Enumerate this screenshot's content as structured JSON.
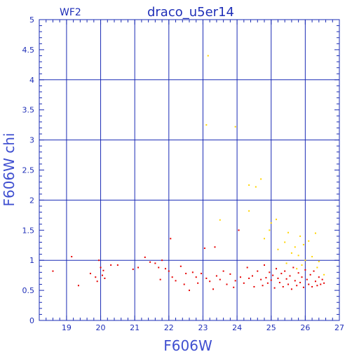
{
  "chart_data": {
    "type": "scatter",
    "title": "draco_u5er14",
    "subtitle": "WF2",
    "xlabel": "F606W",
    "ylabel": "F606W chi",
    "xlim": [
      18.2,
      27
    ],
    "ylim": [
      0,
      5
    ],
    "xticks": [
      19,
      20,
      21,
      22,
      23,
      24,
      25,
      26,
      27
    ],
    "yticks": [
      0,
      0.5,
      1,
      1.5,
      2,
      2.5,
      3,
      3.5,
      4,
      4.5,
      5
    ],
    "ytick_labels": [
      "0",
      "0.5",
      "1",
      "1.5",
      "2",
      "2.5",
      "3",
      "3.5",
      "4",
      "4.5",
      "5"
    ],
    "grid": true,
    "colors": {
      "axes": "#1a2bb5",
      "label": "#3f4fd0",
      "red": "#e60000",
      "yellow": "#ffd400"
    },
    "series": [
      {
        "color": "red",
        "points": [
          [
            18.6,
            0.82
          ],
          [
            19.15,
            1.06
          ],
          [
            19.35,
            0.58
          ],
          [
            19.7,
            0.78
          ],
          [
            19.85,
            0.72
          ],
          [
            19.9,
            0.65
          ],
          [
            19.95,
            1.0
          ],
          [
            20.0,
            0.88
          ],
          [
            20.05,
            0.75
          ],
          [
            20.08,
            0.83
          ],
          [
            20.12,
            0.7
          ],
          [
            20.3,
            0.92
          ],
          [
            20.5,
            0.92
          ],
          [
            20.95,
            0.85
          ],
          [
            21.1,
            0.88
          ],
          [
            21.3,
            1.05
          ],
          [
            21.45,
            0.97
          ],
          [
            21.6,
            0.95
          ],
          [
            21.7,
            0.88
          ],
          [
            21.75,
            0.68
          ],
          [
            21.8,
            1.0
          ],
          [
            21.9,
            0.86
          ],
          [
            22.0,
            0.82
          ],
          [
            22.05,
            1.36
          ],
          [
            22.1,
            0.72
          ],
          [
            22.2,
            0.66
          ],
          [
            22.35,
            0.9
          ],
          [
            22.45,
            0.6
          ],
          [
            22.5,
            0.78
          ],
          [
            22.6,
            0.5
          ],
          [
            22.7,
            0.8
          ],
          [
            22.8,
            0.72
          ],
          [
            22.85,
            0.62
          ],
          [
            22.95,
            0.78
          ],
          [
            23.05,
            1.2
          ],
          [
            23.1,
            0.7
          ],
          [
            23.2,
            0.65
          ],
          [
            23.3,
            0.52
          ],
          [
            23.35,
            1.22
          ],
          [
            23.4,
            0.74
          ],
          [
            23.5,
            0.68
          ],
          [
            23.6,
            0.82
          ],
          [
            23.7,
            0.6
          ],
          [
            23.8,
            0.77
          ],
          [
            23.9,
            0.55
          ],
          [
            23.95,
            0.66
          ],
          [
            24.05,
            1.5
          ],
          [
            24.1,
            0.72
          ],
          [
            24.2,
            0.62
          ],
          [
            24.3,
            0.88
          ],
          [
            24.35,
            0.7
          ],
          [
            24.45,
            0.74
          ],
          [
            24.5,
            0.56
          ],
          [
            24.6,
            0.82
          ],
          [
            24.7,
            0.68
          ],
          [
            24.75,
            0.58
          ],
          [
            24.8,
            0.92
          ],
          [
            24.85,
            0.71
          ],
          [
            24.9,
            0.62
          ],
          [
            24.95,
            0.8
          ],
          [
            25.0,
            0.67
          ],
          [
            25.05,
            0.75
          ],
          [
            25.1,
            0.54
          ],
          [
            25.15,
            0.86
          ],
          [
            25.2,
            0.7
          ],
          [
            25.25,
            0.63
          ],
          [
            25.3,
            0.78
          ],
          [
            25.35,
            0.56
          ],
          [
            25.4,
            0.82
          ],
          [
            25.45,
            0.69
          ],
          [
            25.5,
            0.6
          ],
          [
            25.55,
            0.74
          ],
          [
            25.6,
            0.52
          ],
          [
            25.65,
            0.88
          ],
          [
            25.7,
            0.66
          ],
          [
            25.75,
            0.58
          ],
          [
            25.8,
            0.79
          ],
          [
            25.85,
            0.63
          ],
          [
            25.9,
            0.72
          ],
          [
            25.95,
            0.55
          ],
          [
            26.0,
            0.84
          ],
          [
            26.05,
            0.68
          ],
          [
            26.1,
            0.6
          ],
          [
            26.15,
            0.76
          ],
          [
            26.2,
            0.56
          ],
          [
            26.25,
            0.82
          ],
          [
            26.3,
            0.65
          ],
          [
            26.35,
            0.58
          ],
          [
            26.4,
            0.72
          ],
          [
            26.45,
            0.6
          ],
          [
            26.5,
            0.68
          ],
          [
            26.55,
            0.62
          ]
        ]
      },
      {
        "color": "yellow",
        "points": [
          [
            23.15,
            4.4
          ],
          [
            23.1,
            3.25
          ],
          [
            23.95,
            3.22
          ],
          [
            24.35,
            2.25
          ],
          [
            24.55,
            2.22
          ],
          [
            24.7,
            2.35
          ],
          [
            24.35,
            1.82
          ],
          [
            23.5,
            1.67
          ],
          [
            25.0,
            1.62
          ],
          [
            25.15,
            1.68
          ],
          [
            24.95,
            1.5
          ],
          [
            25.5,
            1.46
          ],
          [
            26.3,
            1.45
          ],
          [
            25.85,
            1.4
          ],
          [
            24.8,
            1.36
          ],
          [
            25.4,
            1.3
          ],
          [
            25.7,
            1.22
          ],
          [
            25.95,
            1.26
          ],
          [
            26.1,
            1.32
          ],
          [
            25.2,
            1.18
          ],
          [
            25.6,
            1.12
          ],
          [
            25.8,
            1.08
          ],
          [
            26.0,
            1.0
          ],
          [
            26.2,
            1.06
          ],
          [
            26.4,
            0.98
          ],
          [
            25.45,
            0.95
          ],
          [
            25.9,
            0.92
          ],
          [
            26.35,
            0.88
          ],
          [
            26.55,
            0.76
          ],
          [
            25.75,
            0.86
          ]
        ]
      }
    ]
  }
}
